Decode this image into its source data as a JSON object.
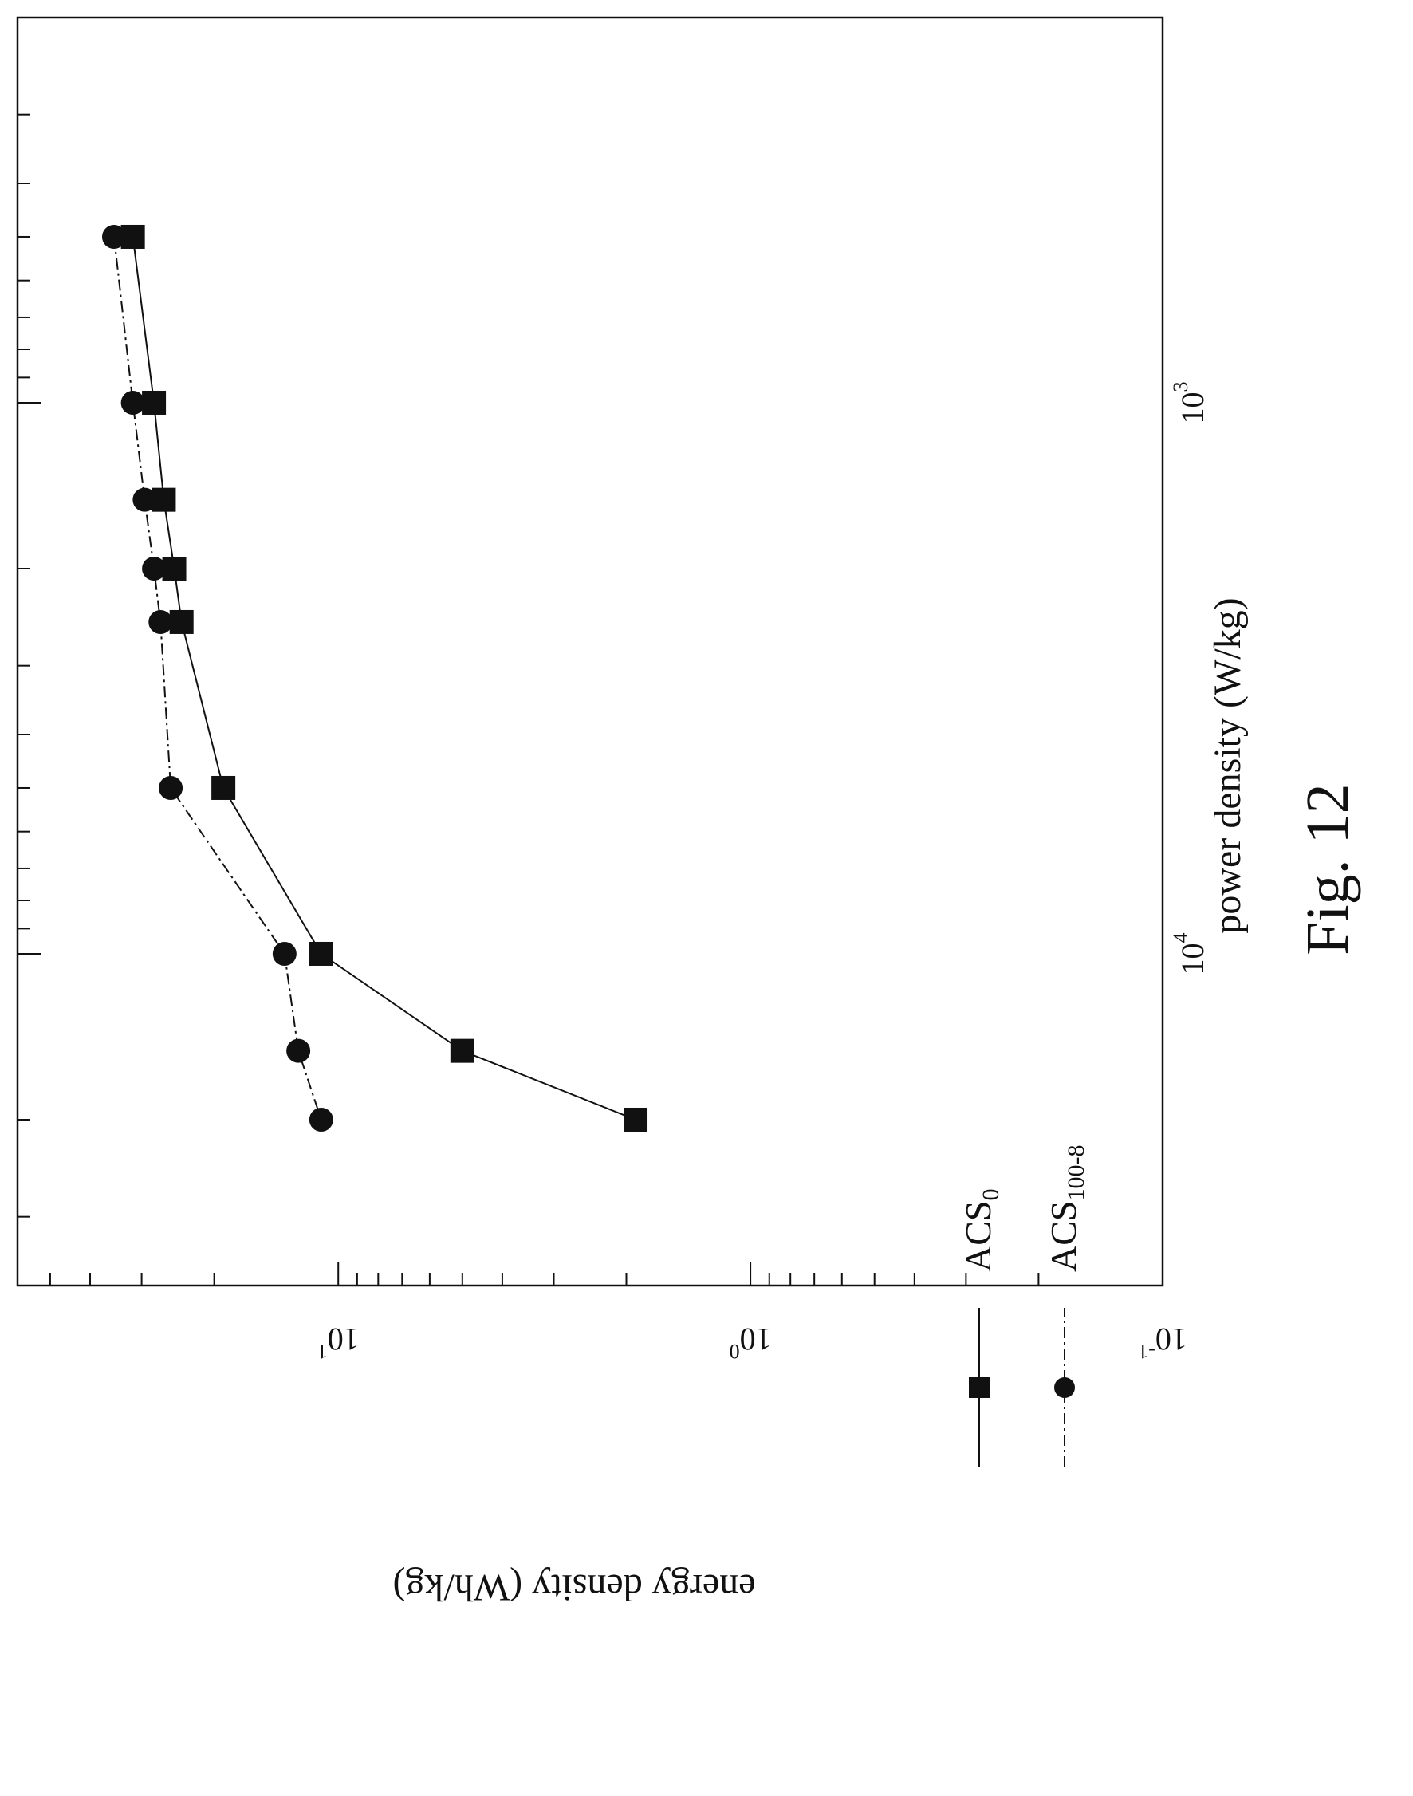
{
  "figure_label": "Fig. 12",
  "chart_data": {
    "type": "line",
    "xlabel": "power density (W/kg)",
    "ylabel": "energy density (Wh/kg)",
    "xscale": "log",
    "yscale": "log",
    "xlim": [
      200,
      40000
    ],
    "ylim": [
      0.1,
      60
    ],
    "x_major_ticks": [
      {
        "value": 1000,
        "base": "10",
        "exp": "3"
      },
      {
        "value": 10000,
        "base": "10",
        "exp": "4"
      }
    ],
    "y_major_ticks": [
      {
        "value": 0.1,
        "base": "10",
        "exp": "-1"
      },
      {
        "value": 1,
        "base": "10",
        "exp": "0"
      },
      {
        "value": 10,
        "base": "10",
        "exp": "1"
      }
    ],
    "legend_position": "bottom-left",
    "series": [
      {
        "name": "ACS",
        "name_sub": "0",
        "marker": "square",
        "line": "solid",
        "x": [
          500,
          1000,
          1500,
          2000,
          2500,
          5000,
          10000,
          15000,
          20000
        ],
        "y": [
          31.5,
          28,
          26.5,
          25,
          24,
          19,
          11,
          5,
          1.9
        ]
      },
      {
        "name": "ACS",
        "name_sub": "100-8",
        "marker": "circle",
        "line": "dash-dot",
        "x": [
          500,
          1000,
          1500,
          2000,
          2500,
          5000,
          10000,
          15000,
          20000
        ],
        "y": [
          35,
          31.5,
          29.5,
          28,
          27,
          25.5,
          13.5,
          12.5,
          11
        ]
      }
    ]
  }
}
